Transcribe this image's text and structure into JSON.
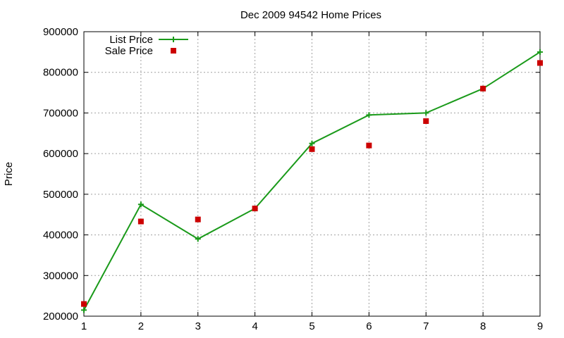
{
  "chart_data": {
    "type": "line",
    "title": "Dec 2009 94542 Home Prices",
    "xlabel": "",
    "ylabel": "Price",
    "x": [
      1,
      2,
      3,
      4,
      5,
      6,
      7,
      8,
      9
    ],
    "xlim": [
      1,
      9
    ],
    "ylim": [
      200000,
      900000
    ],
    "xticks": [
      1,
      2,
      3,
      4,
      5,
      6,
      7,
      8,
      9
    ],
    "yticks": [
      200000,
      300000,
      400000,
      500000,
      600000,
      700000,
      800000,
      900000
    ],
    "grid": true,
    "legend_position": "top-left",
    "series": [
      {
        "name": "List Price",
        "style": "line-with-plus-markers",
        "color": "#1a9a1a",
        "values": [
          215000,
          475000,
          390000,
          465000,
          625000,
          695000,
          700000,
          760000,
          850000
        ]
      },
      {
        "name": "Sale Price",
        "style": "square-markers",
        "color": "#cc0000",
        "values": [
          230000,
          433000,
          438000,
          465000,
          611000,
          620000,
          680000,
          760000,
          823000
        ]
      }
    ]
  }
}
